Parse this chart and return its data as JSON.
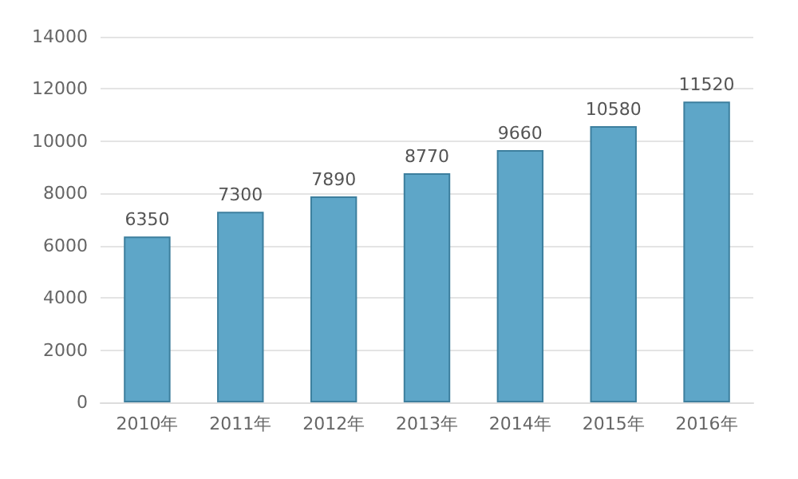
{
  "chart_data": {
    "type": "bar",
    "categories": [
      "2010年",
      "2011年",
      "2012年",
      "2013年",
      "2014年",
      "2015年",
      "2016年"
    ],
    "values": [
      6350,
      7300,
      7890,
      8770,
      9660,
      10580,
      11520
    ],
    "color": "#5ea6c8",
    "ylim": [
      0,
      14000
    ],
    "yticks": [
      0,
      2000,
      4000,
      6000,
      8000,
      10000,
      12000,
      14000
    ],
    "grid": "y",
    "data_labels": true
  }
}
